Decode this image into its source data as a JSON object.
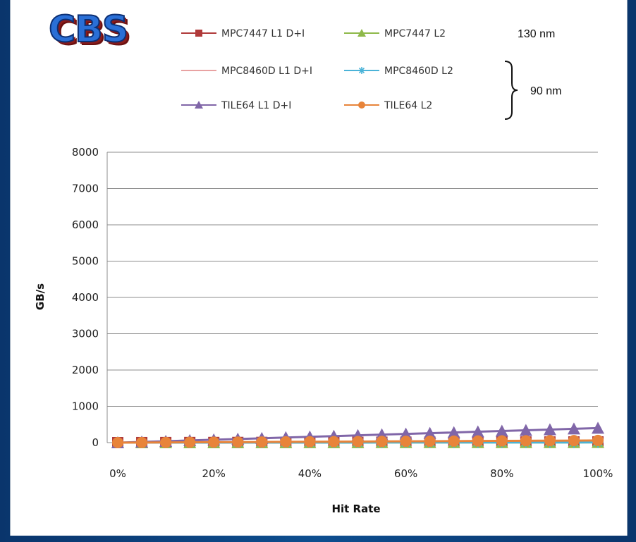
{
  "logo": "CBS",
  "notes": {
    "node_130": "130 nm",
    "node_90": "90 nm"
  },
  "chart_data": {
    "type": "line",
    "xlabel": "Hit Rate",
    "ylabel": "GB/s",
    "ylim": [
      0,
      8000
    ],
    "x": [
      0,
      5,
      10,
      15,
      20,
      25,
      30,
      35,
      40,
      45,
      50,
      55,
      60,
      65,
      70,
      75,
      80,
      85,
      90,
      95,
      100
    ],
    "x_tick_labels": [
      "0%",
      "20%",
      "40%",
      "60%",
      "80%",
      "100%"
    ],
    "y_tick_labels": [
      "0",
      "1000",
      "2000",
      "3000",
      "4000",
      "5000",
      "6000",
      "7000",
      "8000"
    ],
    "grid": "horizontal",
    "legend": "top",
    "series": [
      {
        "name": "MPC7447 L1 D+I",
        "color": "#b03a3a",
        "marker": "square",
        "values": [
          0,
          1,
          2,
          3,
          4,
          5,
          6,
          7,
          8,
          9,
          10,
          11,
          12,
          13,
          14,
          15,
          16,
          17,
          18,
          19,
          20
        ]
      },
      {
        "name": "MPC7447 L2",
        "color": "#8fb94a",
        "marker": "triangle",
        "values": [
          0,
          0,
          1,
          1,
          1,
          2,
          2,
          2,
          3,
          3,
          3,
          4,
          4,
          4,
          5,
          5,
          5,
          6,
          6,
          6,
          7
        ]
      },
      {
        "name": "MPC8460D L1 D+I",
        "color": "#e8a2a2",
        "marker": "dash",
        "values": [
          0,
          1,
          2,
          3,
          4,
          5,
          6,
          7,
          8,
          9,
          10,
          11,
          12,
          13,
          14,
          15,
          16,
          17,
          18,
          19,
          20
        ]
      },
      {
        "name": "MPC8460D L2",
        "color": "#4bb3d8",
        "marker": "star",
        "values": [
          0,
          0,
          1,
          1,
          1,
          2,
          2,
          2,
          3,
          3,
          3,
          4,
          4,
          4,
          5,
          5,
          5,
          6,
          6,
          6,
          7
        ]
      },
      {
        "name": "TILE64 L1 D+I",
        "color": "#8066a8",
        "marker": "triangle",
        "values": [
          0,
          20,
          40,
          60,
          80,
          100,
          120,
          140,
          160,
          180,
          200,
          220,
          240,
          260,
          280,
          300,
          320,
          340,
          360,
          380,
          400
        ]
      },
      {
        "name": "TILE64 L2",
        "color": "#e8843a",
        "marker": "circle",
        "values": [
          0,
          3,
          6,
          9,
          12,
          15,
          18,
          21,
          24,
          27,
          30,
          33,
          36,
          39,
          42,
          45,
          48,
          51,
          54,
          57,
          60
        ]
      }
    ]
  }
}
